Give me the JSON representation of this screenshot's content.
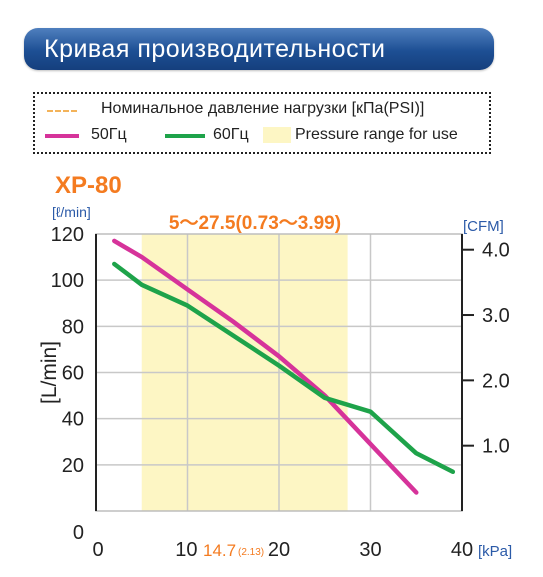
{
  "header": {
    "title": "Кривая производительности"
  },
  "legend": {
    "rated_pressure": "Номинальное давление нагрузки [кПа(PSI)]",
    "hz50": "50Гц",
    "hz60": "60Гц",
    "range": "Pressure range for use"
  },
  "colors": {
    "hz50": "#d6339a",
    "hz60": "#1ea34a",
    "range_fill": "#fdf6c4",
    "banner": "#1d4f94",
    "accent_orange": "#f47b20",
    "right_axis": "#2b5aa8"
  },
  "chart_data": {
    "type": "line",
    "title": "XP-80",
    "range_label": "5～27.5(0.73～3.99)",
    "ylabel": "[L/min]",
    "y_unit_label": "[ℓ/min]",
    "y2_unit_label": "[CFM]",
    "x_unit_label": "[kPa]",
    "xlim": [
      0,
      40
    ],
    "ylim": [
      0,
      120
    ],
    "grid": true,
    "x_ticks": [
      {
        "value": 0,
        "label": "0"
      },
      {
        "value": 10,
        "label": "10"
      },
      {
        "value": 20,
        "label": "20"
      },
      {
        "value": 30,
        "label": "30"
      },
      {
        "value": 40,
        "label": "40"
      }
    ],
    "y_ticks": [
      {
        "value": 0,
        "label": "0"
      },
      {
        "value": 20,
        "label": "20"
      },
      {
        "value": 40,
        "label": "40"
      },
      {
        "value": 60,
        "label": "60"
      },
      {
        "value": 80,
        "label": "80"
      },
      {
        "value": 100,
        "label": "100"
      },
      {
        "value": 120,
        "label": "120"
      }
    ],
    "y2_ticks": [
      {
        "value": 1.0,
        "label": "1.0"
      },
      {
        "value": 2.0,
        "label": "2.0"
      },
      {
        "value": 3.0,
        "label": "3.0"
      },
      {
        "value": 4.0,
        "label": "4.0"
      }
    ],
    "y2_factor_lpm_per_cfm": 28.3,
    "rated_pressure": {
      "value": 14.7,
      "label": "14.7",
      "psi_label": "(2.13)"
    },
    "range": [
      5,
      27.5
    ],
    "series": [
      {
        "name": "50Гц",
        "x": [
          2,
          5,
          10,
          15,
          20,
          25,
          30,
          35
        ],
        "y": [
          117,
          110,
          96,
          82,
          67,
          50,
          29,
          8
        ]
      },
      {
        "name": "60Гц",
        "x": [
          2,
          5,
          10,
          15,
          20,
          25,
          30,
          35,
          39
        ],
        "y": [
          107,
          98,
          89,
          76,
          63,
          49,
          43,
          25,
          17
        ]
      }
    ]
  }
}
